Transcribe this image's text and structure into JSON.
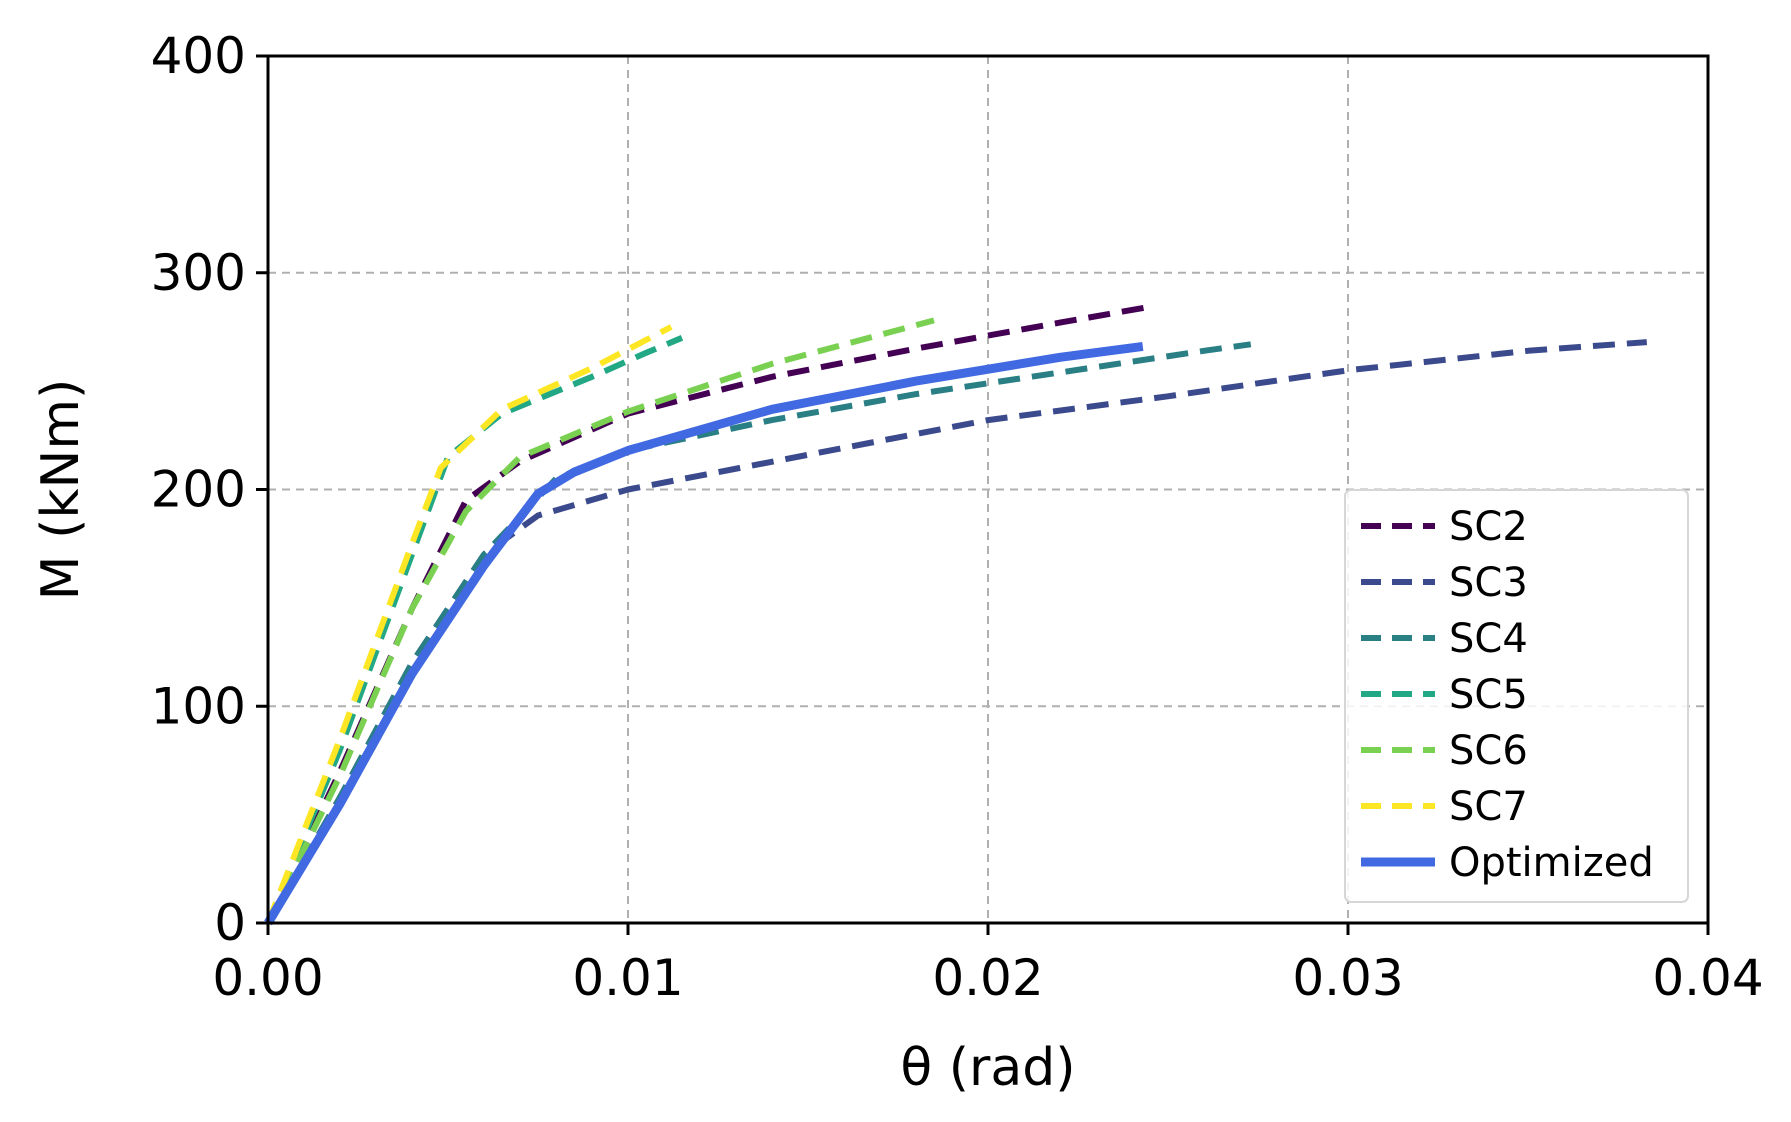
{
  "chart_data": {
    "type": "line",
    "title": "",
    "xlabel": "θ (rad)",
    "ylabel": "M (kNm)",
    "xlim": [
      0,
      0.04
    ],
    "ylim": [
      0,
      400
    ],
    "x_ticks": [
      0,
      0.01,
      0.02,
      0.03,
      0.04
    ],
    "x_tick_labels": [
      "0.00",
      "0.01",
      "0.02",
      "0.03",
      "0.04"
    ],
    "y_ticks": [
      0,
      100,
      200,
      300,
      400
    ],
    "y_tick_labels": [
      "0",
      "100",
      "200",
      "300",
      "400"
    ],
    "grid": true,
    "legend_position": "lower-right",
    "series": [
      {
        "name": "SC2",
        "color": "#440154",
        "style": "dashed",
        "points": [
          [
            0,
            0
          ],
          [
            0.002,
            70
          ],
          [
            0.004,
            145
          ],
          [
            0.0055,
            195
          ],
          [
            0.007,
            213
          ],
          [
            0.01,
            235
          ],
          [
            0.014,
            252
          ],
          [
            0.018,
            265
          ],
          [
            0.022,
            277
          ],
          [
            0.0244,
            284
          ]
        ]
      },
      {
        "name": "SC3",
        "color": "#3b4a8c",
        "style": "dashed",
        "points": [
          [
            0,
            0
          ],
          [
            0.002,
            58
          ],
          [
            0.004,
            120
          ],
          [
            0.006,
            170
          ],
          [
            0.0075,
            188
          ],
          [
            0.01,
            200
          ],
          [
            0.015,
            216
          ],
          [
            0.02,
            232
          ],
          [
            0.025,
            243
          ],
          [
            0.03,
            255
          ],
          [
            0.035,
            264
          ],
          [
            0.0383,
            268
          ]
        ]
      },
      {
        "name": "SC4",
        "color": "#2a7f85",
        "style": "dashed",
        "points": [
          [
            0,
            0
          ],
          [
            0.002,
            58
          ],
          [
            0.004,
            120
          ],
          [
            0.006,
            170
          ],
          [
            0.008,
            205
          ],
          [
            0.01,
            218
          ],
          [
            0.014,
            232
          ],
          [
            0.018,
            244
          ],
          [
            0.022,
            254
          ],
          [
            0.026,
            264
          ],
          [
            0.0273,
            267
          ]
        ]
      },
      {
        "name": "SC5",
        "color": "#22a884",
        "style": "dashed",
        "points": [
          [
            0,
            0
          ],
          [
            0.002,
            80
          ],
          [
            0.004,
            170
          ],
          [
            0.005,
            215
          ],
          [
            0.0065,
            235
          ],
          [
            0.009,
            252
          ],
          [
            0.0105,
            263
          ],
          [
            0.0115,
            270
          ]
        ]
      },
      {
        "name": "SC6",
        "color": "#7ad151",
        "style": "dashed",
        "points": [
          [
            0,
            0
          ],
          [
            0.002,
            68
          ],
          [
            0.004,
            145
          ],
          [
            0.0055,
            190
          ],
          [
            0.007,
            215
          ],
          [
            0.01,
            236
          ],
          [
            0.014,
            258
          ],
          [
            0.0185,
            278
          ]
        ]
      },
      {
        "name": "SC7",
        "color": "#fde725",
        "style": "dashed",
        "points": [
          [
            0,
            0
          ],
          [
            0.002,
            85
          ],
          [
            0.004,
            175
          ],
          [
            0.0048,
            210
          ],
          [
            0.0065,
            237
          ],
          [
            0.009,
            256
          ],
          [
            0.0112,
            275
          ]
        ]
      },
      {
        "name": "Optimized",
        "color": "#4169e1",
        "style": "solid",
        "points": [
          [
            0,
            0
          ],
          [
            0.002,
            55
          ],
          [
            0.004,
            115
          ],
          [
            0.006,
            165
          ],
          [
            0.0075,
            198
          ],
          [
            0.0085,
            208
          ],
          [
            0.01,
            218
          ],
          [
            0.014,
            237
          ],
          [
            0.018,
            250
          ],
          [
            0.022,
            261
          ],
          [
            0.0243,
            266
          ]
        ]
      }
    ]
  }
}
